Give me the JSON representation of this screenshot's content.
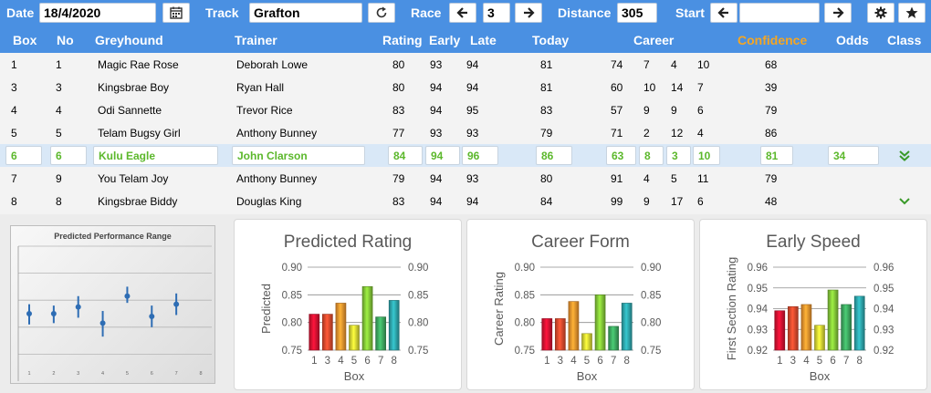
{
  "toolbar": {
    "date_label": "Date",
    "date_value": "18/4/2020",
    "track_label": "Track",
    "track_value": "Grafton",
    "race_label": "Race",
    "race_value": "3",
    "distance_label": "Distance",
    "distance_value": "305",
    "start_label": "Start",
    "start_value": ""
  },
  "columns": {
    "box": "Box",
    "no": "No",
    "greyhound": "Greyhound",
    "trainer": "Trainer",
    "rating": "Rating",
    "early": "Early",
    "late": "Late",
    "today": "Today",
    "career": "Career",
    "confidence": "Confidence",
    "odds": "Odds",
    "class": "Class"
  },
  "rows": [
    {
      "box": "1",
      "no": "1",
      "greyhound": "Magic Rae Rose",
      "trainer": "Deborah Lowe",
      "rating": "80",
      "early": "93",
      "late": "94",
      "today": "81",
      "career": [
        "74",
        "7",
        "4",
        "10"
      ],
      "confidence": "68",
      "odds": "",
      "class_icon": ""
    },
    {
      "box": "3",
      "no": "3",
      "greyhound": "Kingsbrae Boy",
      "trainer": "Ryan Hall",
      "rating": "80",
      "early": "94",
      "late": "94",
      "today": "81",
      "career": [
        "60",
        "10",
        "14",
        "7"
      ],
      "confidence": "39",
      "odds": "",
      "class_icon": ""
    },
    {
      "box": "4",
      "no": "4",
      "greyhound": "Odi Sannette",
      "trainer": "Trevor Rice",
      "rating": "83",
      "early": "94",
      "late": "95",
      "today": "83",
      "career": [
        "57",
        "9",
        "9",
        "6"
      ],
      "confidence": "79",
      "odds": "",
      "class_icon": ""
    },
    {
      "box": "5",
      "no": "5",
      "greyhound": "Telam Bugsy Girl",
      "trainer": "Anthony Bunney",
      "rating": "77",
      "early": "93",
      "late": "93",
      "today": "79",
      "career": [
        "71",
        "2",
        "12",
        "4"
      ],
      "confidence": "86",
      "odds": "",
      "class_icon": ""
    },
    {
      "box": "6",
      "no": "6",
      "greyhound": "Kulu Eagle",
      "trainer": "John Clarson",
      "rating": "84",
      "early": "94",
      "late": "96",
      "today": "86",
      "career": [
        "63",
        "8",
        "3",
        "10"
      ],
      "confidence": "81",
      "odds": "34",
      "class_icon": "double-chevron-down-icon"
    },
    {
      "box": "7",
      "no": "9",
      "greyhound": "You Telam Joy",
      "trainer": "Anthony Bunney",
      "rating": "79",
      "early": "94",
      "late": "93",
      "today": "80",
      "career": [
        "91",
        "4",
        "5",
        "11"
      ],
      "confidence": "79",
      "odds": "",
      "class_icon": ""
    },
    {
      "box": "8",
      "no": "8",
      "greyhound": "Kingsbrae Biddy",
      "trainer": "Douglas King",
      "rating": "83",
      "early": "94",
      "late": "94",
      "today": "84",
      "career": [
        "99",
        "9",
        "17",
        "6"
      ],
      "confidence": "48",
      "odds": "",
      "class_icon": "chevron-down-icon"
    }
  ],
  "colors": {
    "header_blue": "#4a90e2",
    "confidence_orange": "#f5a623",
    "selected_green": "#5cb82c",
    "bar_colors": [
      "#c8102e",
      "#d2452a",
      "#e08a2a",
      "#c8c830",
      "#7ab934",
      "#3a9e5a",
      "#2a9aa0"
    ]
  },
  "chart_data": [
    {
      "type": "scatter",
      "title": "Predicted Performance Range",
      "x": [
        1,
        2,
        3,
        4,
        5,
        6,
        7
      ],
      "xticks": [
        "1",
        "2",
        "3",
        "4",
        "5",
        "6",
        "7",
        "8"
      ],
      "points": [
        0.5,
        0.5,
        0.55,
        0.43,
        0.63,
        0.48,
        0.57
      ],
      "error_low": [
        0.42,
        0.43,
        0.47,
        0.33,
        0.58,
        0.4,
        0.49
      ],
      "error_high": [
        0.57,
        0.56,
        0.63,
        0.52,
        0.7,
        0.56,
        0.65
      ],
      "ylim": [
        0,
        1
      ]
    },
    {
      "type": "bar",
      "title": "Predicted Rating",
      "categories": [
        "1",
        "3",
        "4",
        "5",
        "6",
        "7",
        "8"
      ],
      "values": [
        0.815,
        0.815,
        0.835,
        0.795,
        0.865,
        0.81,
        0.84
      ],
      "xlabel": "Box",
      "ylabel": "Predicted",
      "ylim": [
        0.75,
        0.9
      ],
      "yticks": [
        "0.75",
        "0.80",
        "0.85",
        "0.90"
      ]
    },
    {
      "type": "bar",
      "title": "Career Form",
      "categories": [
        "1",
        "3",
        "4",
        "5",
        "6",
        "7",
        "8"
      ],
      "values": [
        0.807,
        0.807,
        0.838,
        0.78,
        0.85,
        0.793,
        0.835
      ],
      "xlabel": "Box",
      "ylabel": "Career Rating",
      "ylim": [
        0.75,
        0.9
      ],
      "yticks": [
        "0.75",
        "0.80",
        "0.85",
        "0.90"
      ]
    },
    {
      "type": "bar",
      "title": "Early Speed",
      "categories": [
        "1",
        "3",
        "4",
        "5",
        "6",
        "7",
        "8"
      ],
      "values": [
        0.939,
        0.941,
        0.942,
        0.932,
        0.949,
        0.942,
        0.946
      ],
      "xlabel": "Box",
      "ylabel": "First Section Rating",
      "ylim": [
        0.92,
        0.96
      ],
      "yticks": [
        "0.92",
        "0.93",
        "0.94",
        "0.95",
        "0.96"
      ]
    }
  ]
}
